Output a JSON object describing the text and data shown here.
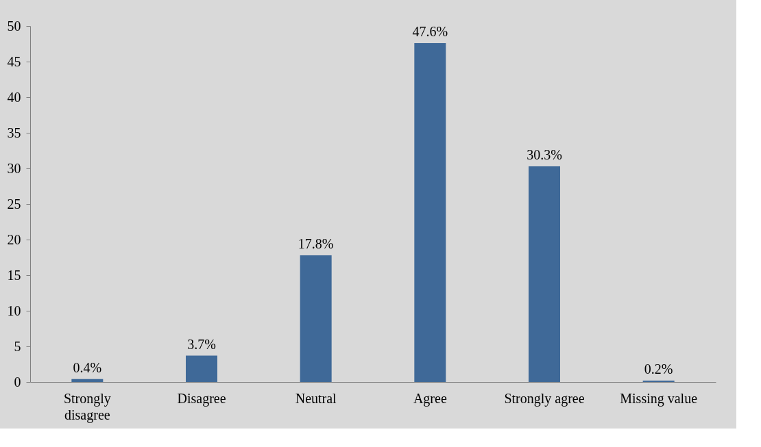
{
  "chart_data": {
    "type": "bar",
    "categories": [
      "Strongly disagree",
      "Disagree",
      "Neutral",
      "Agree",
      "Strongly agree",
      "Missing value"
    ],
    "values": [
      0.4,
      3.7,
      17.8,
      47.6,
      30.3,
      0.2
    ],
    "value_labels": [
      "0.4%",
      "3.7%",
      "17.8%",
      "47.6%",
      "30.3%",
      "0.2%"
    ],
    "color": "#3f6998",
    "ylim": [
      0,
      50
    ],
    "yticks": [
      0,
      5,
      10,
      15,
      20,
      25,
      30,
      35,
      40,
      45,
      50
    ]
  }
}
